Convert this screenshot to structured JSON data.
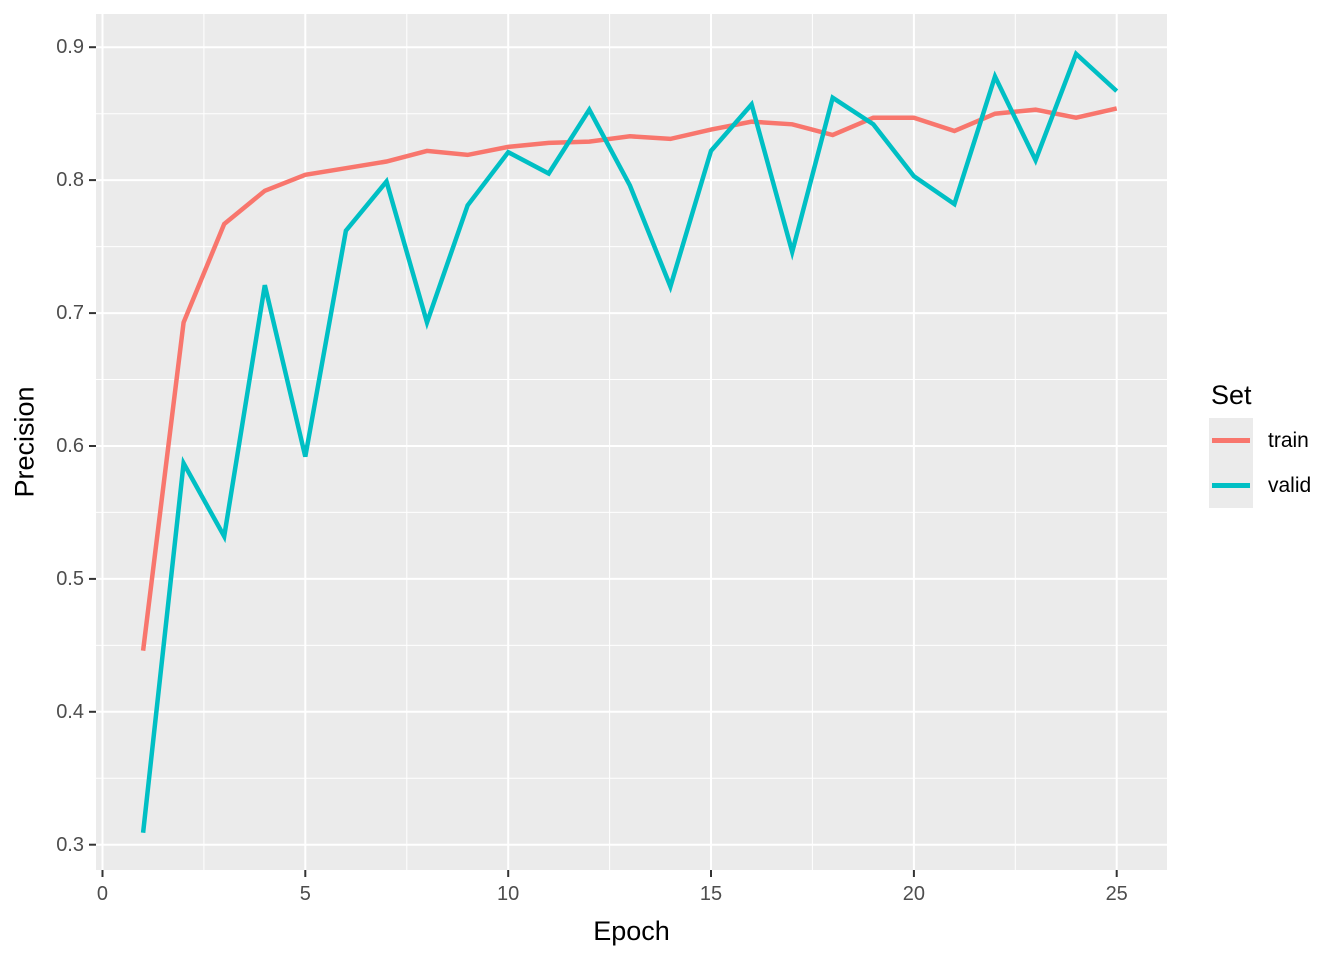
{
  "figure": {
    "xlabel": "Epoch",
    "ylabel": "Precision"
  },
  "legend": {
    "title": "Set",
    "items": [
      {
        "label": "train",
        "color": "#F8766D"
      },
      {
        "label": "valid",
        "color": "#00BFC4"
      }
    ]
  },
  "chart_data": {
    "type": "line",
    "title": "",
    "xlabel": "Epoch",
    "ylabel": "Precision",
    "x": [
      1,
      2,
      3,
      4,
      5,
      6,
      7,
      8,
      9,
      10,
      11,
      12,
      13,
      14,
      15,
      16,
      17,
      18,
      19,
      20,
      21,
      22,
      23,
      24,
      25
    ],
    "series": [
      {
        "name": "train",
        "color": "#F8766D",
        "values": [
          0.446,
          0.693,
          0.767,
          0.792,
          0.804,
          0.809,
          0.814,
          0.822,
          0.819,
          0.825,
          0.828,
          0.829,
          0.833,
          0.831,
          0.838,
          0.844,
          0.842,
          0.834,
          0.847,
          0.847,
          0.837,
          0.85,
          0.853,
          0.847,
          0.854
        ]
      },
      {
        "name": "valid",
        "color": "#00BFC4",
        "values": [
          0.309,
          0.587,
          0.532,
          0.721,
          0.592,
          0.762,
          0.799,
          0.693,
          0.781,
          0.821,
          0.805,
          0.853,
          0.796,
          0.72,
          0.822,
          0.857,
          0.746,
          0.862,
          0.842,
          0.803,
          0.782,
          0.878,
          0.815,
          0.895,
          0.867
        ]
      }
    ],
    "xlim": [
      -0.16,
      26.24
    ],
    "ylim": [
      0.281,
      0.925
    ],
    "x_ticks": {
      "major": [
        0,
        5,
        10,
        15,
        20,
        25
      ],
      "minor": [
        2.5,
        7.5,
        12.5,
        17.5,
        22.5
      ],
      "labels": [
        "0",
        "5",
        "10",
        "15",
        "20",
        "25"
      ]
    },
    "y_ticks": {
      "major": [
        0.3,
        0.4,
        0.5,
        0.6,
        0.7,
        0.8,
        0.9
      ],
      "minor": [
        0.35,
        0.45,
        0.55,
        0.65,
        0.75,
        0.85
      ],
      "labels": [
        "0.3",
        "0.4",
        "0.5",
        "0.6",
        "0.7",
        "0.8",
        "0.9"
      ]
    },
    "grid": true,
    "legend_position": "right",
    "legend_title": "Set",
    "colors": {
      "panel_bg": "#EBEBEB",
      "grid": "#FFFFFF",
      "tick_label": "#4D4D4D",
      "axis_title": "#000000",
      "tick_mark": "#333333"
    }
  }
}
